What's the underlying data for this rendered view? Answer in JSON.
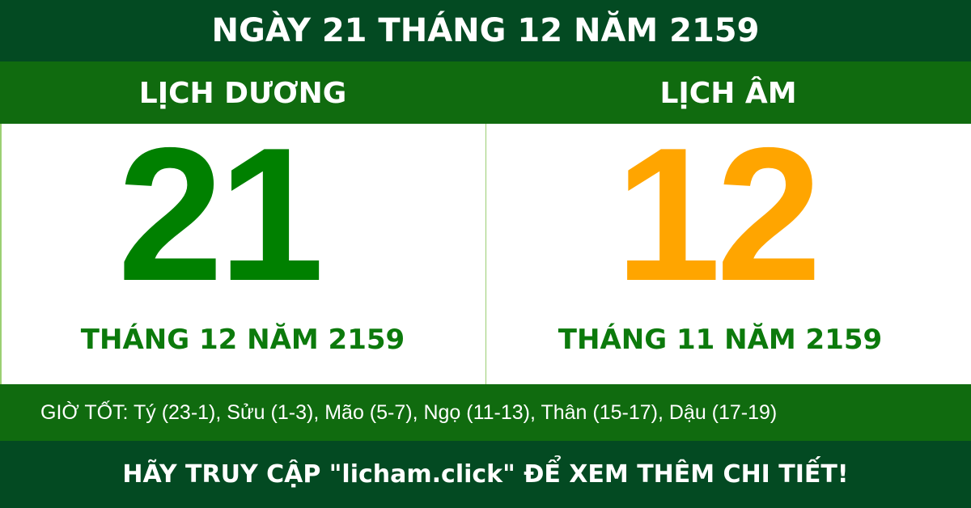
{
  "header": {
    "title": "NGÀY 21 THÁNG 12 NĂM 2159"
  },
  "solar": {
    "label": "LỊCH DƯƠNG",
    "day": "21",
    "month_year": "THÁNG 12 NĂM 2159"
  },
  "lunar": {
    "label": "LỊCH ÂM",
    "day": "12",
    "month_year": "THÁNG 11 NĂM 2159"
  },
  "good_hours": {
    "text": "GIỜ TỐT: Tý (23-1), Sửu (1-3), Mão (5-7), Ngọ (11-13), Thân (15-17), Dậu (17-19)"
  },
  "footer": {
    "text": "HÃY TRUY CẬP \"licham.click\" ĐỂ XEM THÊM CHI TIẾT!"
  },
  "colors": {
    "dark_green": "#034a22",
    "green": "#106b0f",
    "solar_day": "#008000",
    "lunar_day": "#ffa500"
  }
}
